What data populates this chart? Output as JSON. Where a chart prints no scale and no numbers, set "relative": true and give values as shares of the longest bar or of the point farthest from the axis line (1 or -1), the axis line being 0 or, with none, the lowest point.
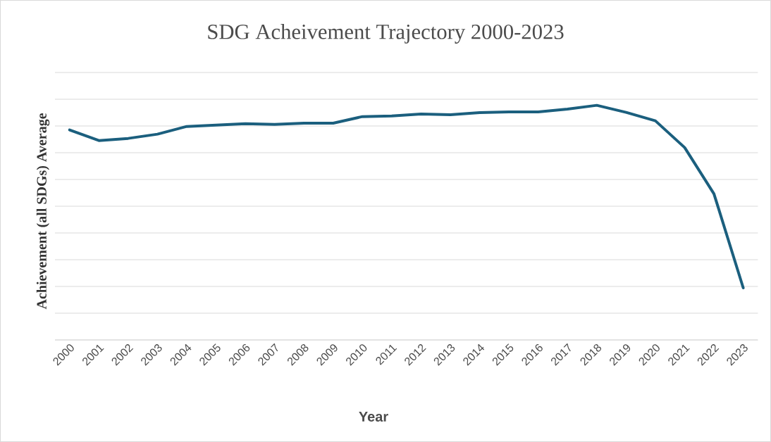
{
  "chart_data": {
    "type": "line",
    "title": "SDG Acheivement Trajectory 2000-2023",
    "xlabel": "Year",
    "ylabel": "Achievement (all SDGs) Average",
    "categories": [
      "2000",
      "2001",
      "2002",
      "2003",
      "2004",
      "2005",
      "2006",
      "2007",
      "2008",
      "2009",
      "2010",
      "2011",
      "2012",
      "2013",
      "2014",
      "2015",
      "2016",
      "2017",
      "2018",
      "2019",
      "2020",
      "2021",
      "2022",
      "2023"
    ],
    "relative": true,
    "grid": "y",
    "marker": "none",
    "line_style": "solid",
    "series": [
      {
        "color": "#1b5f7e",
        "values": [
          0.895,
          0.85,
          0.859,
          0.877,
          0.91,
          0.916,
          0.922,
          0.919,
          0.924,
          0.924,
          0.952,
          0.955,
          0.963,
          0.96,
          0.969,
          0.972,
          0.972,
          0.984,
          1.0,
          0.97,
          0.934,
          0.82,
          0.623,
          0.222
        ]
      }
    ]
  }
}
